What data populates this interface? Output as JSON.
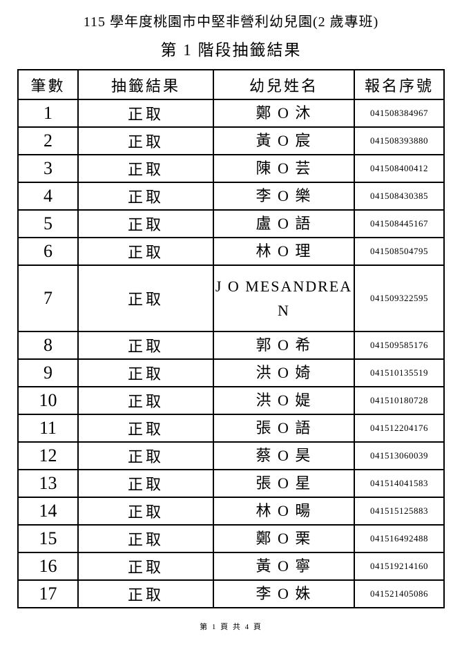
{
  "page": {
    "title": "115 學年度桃園市中堅非營利幼兒園(2 歲專班)",
    "subtitle": "第 1 階段抽籤結果",
    "footer": "第 1 頁 共 4 頁"
  },
  "table": {
    "headers": [
      "筆數",
      "抽籤結果",
      "幼兒姓名",
      "報名序號"
    ],
    "rows": [
      {
        "no": "1",
        "result": "正取",
        "name": "鄭 O 沐",
        "reg_no": "041508384967"
      },
      {
        "no": "2",
        "result": "正取",
        "name": "黃 O 宸",
        "reg_no": "041508393880"
      },
      {
        "no": "3",
        "result": "正取",
        "name": "陳 O 芸",
        "reg_no": "041508400412"
      },
      {
        "no": "4",
        "result": "正取",
        "name": "李 O 樂",
        "reg_no": "041508430385"
      },
      {
        "no": "5",
        "result": "正取",
        "name": "盧 O 語",
        "reg_no": "041508445167"
      },
      {
        "no": "6",
        "result": "正取",
        "name": "林 O 理",
        "reg_no": "041508504795"
      },
      {
        "no": "7",
        "result": "正取",
        "name": "J O MESANDREA\nN",
        "reg_no": "041509322595"
      },
      {
        "no": "8",
        "result": "正取",
        "name": "郭 O 希",
        "reg_no": "041509585176"
      },
      {
        "no": "9",
        "result": "正取",
        "name": "洪 O 婍",
        "reg_no": "041510135519"
      },
      {
        "no": "10",
        "result": "正取",
        "name": "洪 O 媞",
        "reg_no": "041510180728"
      },
      {
        "no": "11",
        "result": "正取",
        "name": "張 O 語",
        "reg_no": "041512204176"
      },
      {
        "no": "12",
        "result": "正取",
        "name": "蔡 O 昊",
        "reg_no": "041513060039"
      },
      {
        "no": "13",
        "result": "正取",
        "name": "張 O 星",
        "reg_no": "041514041583"
      },
      {
        "no": "14",
        "result": "正取",
        "name": "林 O 暘",
        "reg_no": "041515125883"
      },
      {
        "no": "15",
        "result": "正取",
        "name": "鄭 O 栗",
        "reg_no": "041516492488"
      },
      {
        "no": "16",
        "result": "正取",
        "name": "黃 O 寧",
        "reg_no": "041519214160"
      },
      {
        "no": "17",
        "result": "正取",
        "name": "李 O 姝",
        "reg_no": "041521405086"
      }
    ]
  }
}
